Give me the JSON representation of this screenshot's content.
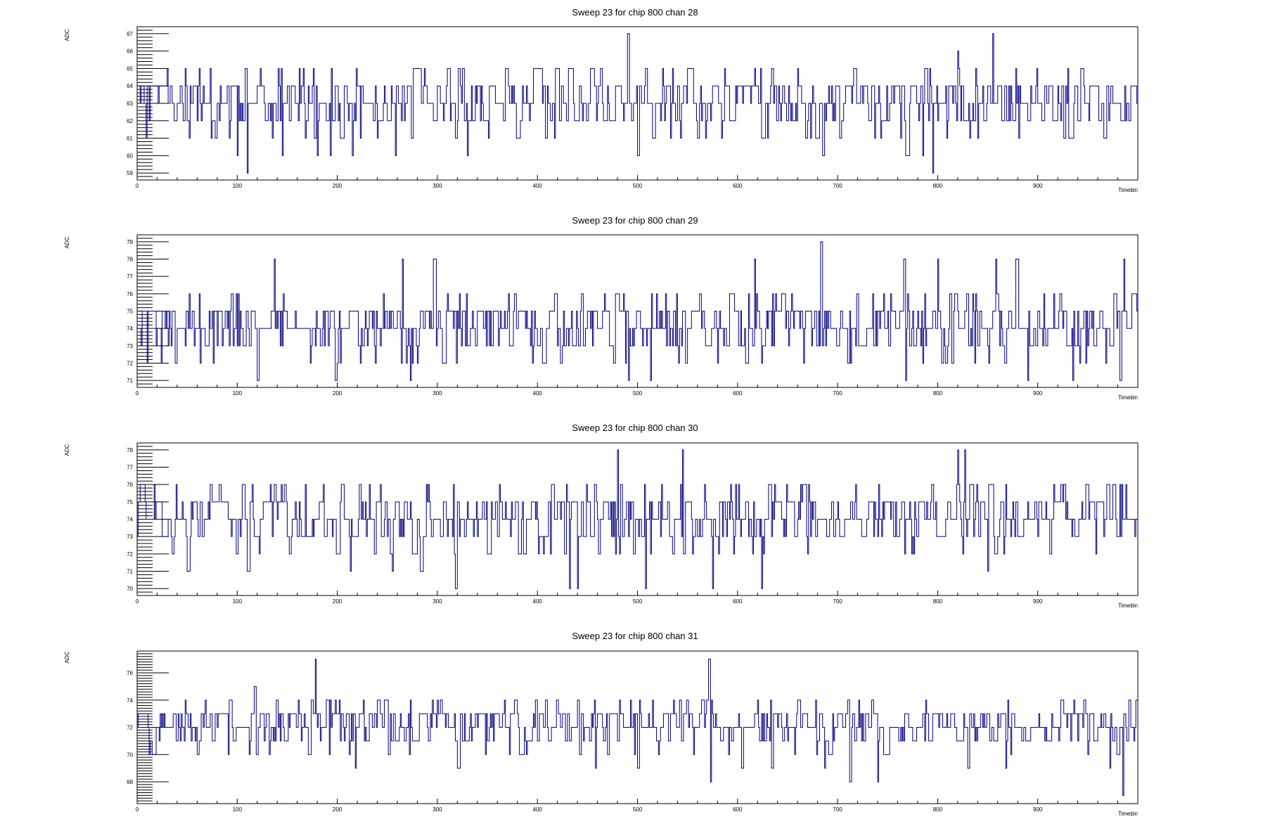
{
  "chart_data": [
    {
      "type": "line",
      "title": "Sweep 23 for chip 800 chan 28",
      "xlabel": "Timebin",
      "ylabel": "ADC",
      "xlim": [
        0,
        1000
      ],
      "ylim": [
        58.6,
        67.4
      ],
      "x_ticks": [
        0,
        100,
        200,
        300,
        400,
        500,
        600,
        700,
        800,
        900
      ],
      "y_ticks": [
        59,
        60,
        61,
        62,
        63,
        64,
        65,
        66,
        67
      ],
      "baseline": 63,
      "series": [
        {
          "seed": 28,
          "color": "#000080",
          "points": [
            [
              110,
              59
            ],
            [
              795,
              59
            ],
            [
              490,
              67
            ],
            [
              855,
              67
            ],
            [
              100,
              60
            ],
            [
              180,
              60
            ],
            [
              193,
              60
            ],
            [
              330,
              60
            ],
            [
              500,
              60
            ],
            [
              785,
              60
            ],
            [
              215,
              60
            ],
            [
              258,
              60
            ],
            [
              145,
              60
            ],
            [
              685,
              60
            ]
          ]
        }
      ]
    },
    {
      "type": "line",
      "title": "Sweep 23 for chip 800 chan 29",
      "xlabel": "Timebin",
      "ylabel": "ADC",
      "xlim": [
        0,
        1000
      ],
      "ylim": [
        70.6,
        79.4
      ],
      "x_ticks": [
        0,
        100,
        200,
        300,
        400,
        500,
        600,
        700,
        800,
        900
      ],
      "y_ticks": [
        71,
        72,
        73,
        74,
        75,
        76,
        77,
        78,
        79
      ],
      "baseline": 74,
      "series": [
        {
          "seed": 29,
          "color": "#000080",
          "points": [
            [
              683,
              79
            ],
            [
              137,
              78
            ],
            [
              265,
              78
            ],
            [
              296,
              78
            ],
            [
              617,
              78
            ],
            [
              766,
              78
            ],
            [
              800,
              78
            ],
            [
              858,
              78
            ],
            [
              878,
              78
            ],
            [
              986,
              78
            ],
            [
              120,
              71
            ],
            [
              198,
              71
            ],
            [
              273,
              71
            ],
            [
              513,
              71
            ],
            [
              768,
              71
            ],
            [
              890,
              71
            ],
            [
              935,
              71
            ],
            [
              982,
              71
            ]
          ]
        }
      ]
    },
    {
      "type": "line",
      "title": "Sweep 23 for chip 800 chan 30",
      "xlabel": "Timebin",
      "ylabel": "ADC",
      "xlim": [
        0,
        1000
      ],
      "ylim": [
        69.6,
        78.4
      ],
      "x_ticks": [
        0,
        100,
        200,
        300,
        400,
        500,
        600,
        700,
        800,
        900
      ],
      "y_ticks": [
        70,
        71,
        72,
        73,
        74,
        75,
        76,
        77,
        78
      ],
      "baseline": 74,
      "series": [
        {
          "seed": 30,
          "color": "#000080",
          "points": [
            [
              480,
              78
            ],
            [
              545,
              78
            ],
            [
              820,
              78
            ],
            [
              827,
              78
            ],
            [
              318,
              70
            ],
            [
              432,
              70
            ],
            [
              440,
              70
            ],
            [
              508,
              70
            ],
            [
              575,
              70
            ],
            [
              624,
              70
            ],
            [
              50,
              71
            ],
            [
              110,
              71
            ],
            [
              213,
              71
            ],
            [
              255,
              71
            ],
            [
              283,
              71
            ]
          ]
        }
      ]
    },
    {
      "type": "line",
      "title": "Sweep 23 for chip 800 chan 31",
      "xlabel": "Timebin",
      "ylabel": "ADC",
      "xlim": [
        0,
        1000
      ],
      "ylim": [
        66.4,
        77.6
      ],
      "x_ticks": [
        0,
        100,
        200,
        300,
        400,
        500,
        600,
        700,
        800,
        900
      ],
      "y_ticks": [
        68,
        70,
        72,
        74,
        76
      ],
      "baseline": 72,
      "series": [
        {
          "seed": 31,
          "color": "#000080",
          "points": [
            [
              178,
              77
            ],
            [
              571,
              77
            ],
            [
              573,
              68
            ],
            [
              712,
              68
            ],
            [
              740,
              68
            ],
            [
              985,
              67
            ],
            [
              218,
              69
            ],
            [
              458,
              69
            ],
            [
              500,
              69
            ],
            [
              604,
              69
            ],
            [
              830,
              69
            ],
            [
              868,
              69
            ]
          ]
        }
      ]
    }
  ]
}
